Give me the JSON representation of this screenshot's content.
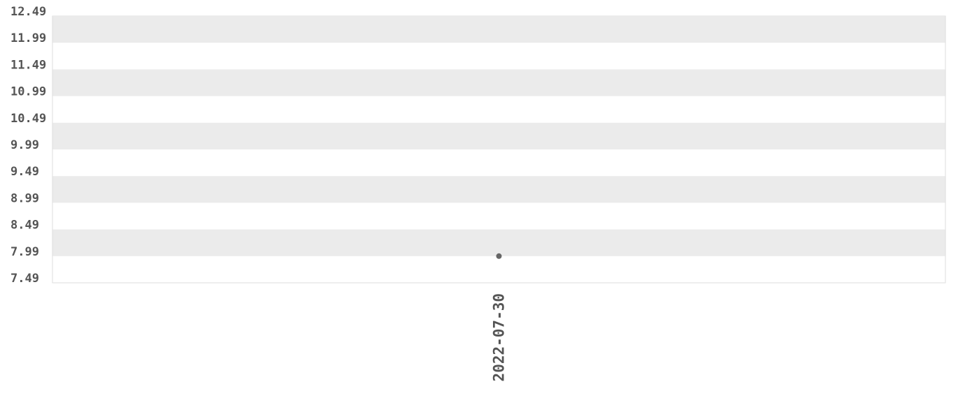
{
  "chart_data": {
    "type": "line",
    "categories": [
      "2022-07-30"
    ],
    "values": [
      7.99
    ],
    "color": "#666666",
    "band_color": "#ebebeb",
    "ylim": [
      7.49,
      12.49
    ],
    "yticks": [
      7.49,
      7.99,
      8.49,
      8.99,
      9.49,
      9.99,
      10.49,
      10.99,
      11.49,
      11.99,
      12.49
    ],
    "grid": true
  }
}
